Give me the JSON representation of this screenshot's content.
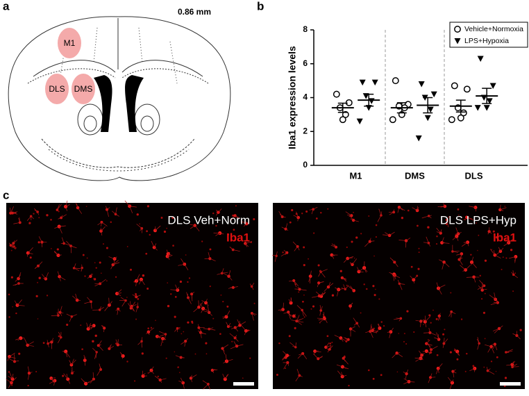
{
  "panels": {
    "a": "a",
    "b": "b",
    "c": "c"
  },
  "diagram": {
    "level": "0.86 mm",
    "regions": [
      "M1",
      "DLS",
      "DMS"
    ]
  },
  "images": [
    {
      "title": "DLS Veh+Norm",
      "stain": "Iba1"
    },
    {
      "title": "DLS LPS+Hyp",
      "stain": "Iba1"
    }
  ],
  "chart_data": {
    "type": "dot",
    "y_label": "Iba1 expression levels",
    "categories": [
      "M1",
      "DMS",
      "DLS"
    ],
    "ylim": [
      0,
      8
    ],
    "yticks": [
      0,
      2,
      4,
      6,
      8
    ],
    "series": [
      {
        "name": "Vehicle+Normoxia",
        "marker": "circle",
        "color": "#000000",
        "values": [
          [
            4.2,
            3.7,
            3.4,
            3.0,
            2.7
          ],
          [
            5.0,
            3.6,
            3.5,
            3.4,
            3.0,
            2.7
          ],
          [
            4.7,
            4.5,
            3.4,
            3.1,
            2.8,
            2.7
          ]
        ],
        "mean": [
          3.4,
          3.4,
          3.5
        ],
        "sem": [
          0.27,
          0.3,
          0.35
        ]
      },
      {
        "name": "LPS+Hypoxia",
        "marker": "triangle",
        "color": "#000000",
        "values": [
          [
            4.9,
            4.9,
            4.1,
            3.8,
            3.4,
            2.6
          ],
          [
            4.8,
            4.2,
            4.0,
            3.3,
            2.8,
            1.6
          ],
          [
            6.3,
            4.7,
            4.0,
            3.8,
            3.4,
            3.4
          ]
        ],
        "mean": [
          3.85,
          3.55,
          4.1
        ],
        "sem": [
          0.35,
          0.45,
          0.45
        ]
      }
    ]
  }
}
